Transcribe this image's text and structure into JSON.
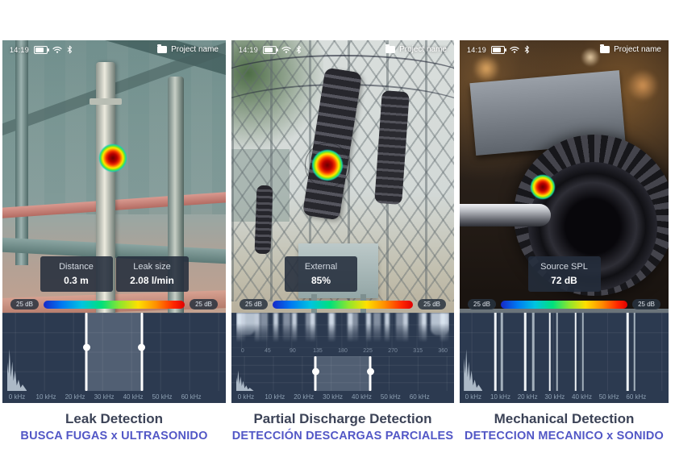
{
  "app": {
    "icons": {
      "battery-icon": "battery-full",
      "wifi-icon": "wifi-arcs",
      "bluetooth-icon": "bluetooth-rune",
      "folder-icon": "project-folder"
    },
    "colors": {
      "panel_bg": "#2c3a50",
      "badge_bg": "rgba(36,46,60,0.88)",
      "caption_title": "#3c4357",
      "caption_subtitle": "#5257c6",
      "scale_gradient": [
        "#1728c8",
        "#00c4e0",
        "#00e07c",
        "#ffe000",
        "#ff8c00",
        "#e00000"
      ]
    }
  },
  "phones": [
    {
      "name": "leak-detection-screen",
      "status": {
        "time": "14:19",
        "project": "Project name"
      },
      "badges": [
        {
          "label": "Distance",
          "value": "0.3 m"
        },
        {
          "label": "Leak size",
          "value": "2.08 l/min"
        }
      ],
      "scale": {
        "left": "25 dB",
        "right": "25 dB"
      },
      "spectrum": {
        "ticks": [
          "0 kHz",
          "10 kHz",
          "20 kHz",
          "30 kHz",
          "40 kHz",
          "50 kHz",
          "60 kHz"
        ],
        "band_khz": [
          24,
          43
        ],
        "peaks_khz": []
      },
      "caption": {
        "title": "Leak Detection",
        "subtitle": "BUSCA FUGAS x ULTRASONIDO"
      }
    },
    {
      "name": "partial-discharge-screen",
      "status": {
        "time": "14:19",
        "project": "Project name"
      },
      "badges": [
        {
          "label": "External",
          "value": "85%"
        }
      ],
      "scale": {
        "left": "25 dB",
        "right": "25 dB"
      },
      "prpd": {
        "ticks": [
          "0",
          "45",
          "90",
          "135",
          "180",
          "225",
          "270",
          "315",
          "360"
        ]
      },
      "spectrum": {
        "ticks": [
          "0 kHz",
          "10 kHz",
          "20 kHz",
          "30 kHz",
          "40 kHz",
          "50 kHz",
          "60 kHz"
        ],
        "band_khz": [
          24,
          43
        ],
        "peaks_khz": []
      },
      "caption": {
        "title": "Partial Discharge Detection",
        "subtitle": "DETECCIÓN DESCARGAS PARCIALES"
      }
    },
    {
      "name": "mechanical-detection-screen",
      "status": {
        "time": "14:19",
        "project": "Project name"
      },
      "badges": [
        {
          "label": "Source SPL",
          "value": "72 dB"
        }
      ],
      "scale": {
        "left": "25 dB",
        "right": "25 dB"
      },
      "spectrum": {
        "ticks": [
          "0 kHz",
          "10 kHz",
          "20 kHz",
          "30 kHz",
          "40 kHz",
          "50 kHz",
          "60 kHz"
        ],
        "band_khz": null,
        "peaks_khz": [
          8.2,
          10.5,
          19.1,
          22.1,
          28.2,
          30.9,
          37.7,
          40.3,
          56.8,
          59.4
        ]
      },
      "caption": {
        "title": "Mechanical Detection",
        "subtitle": "DETECCION MECANICO x SONIDO"
      }
    }
  ]
}
